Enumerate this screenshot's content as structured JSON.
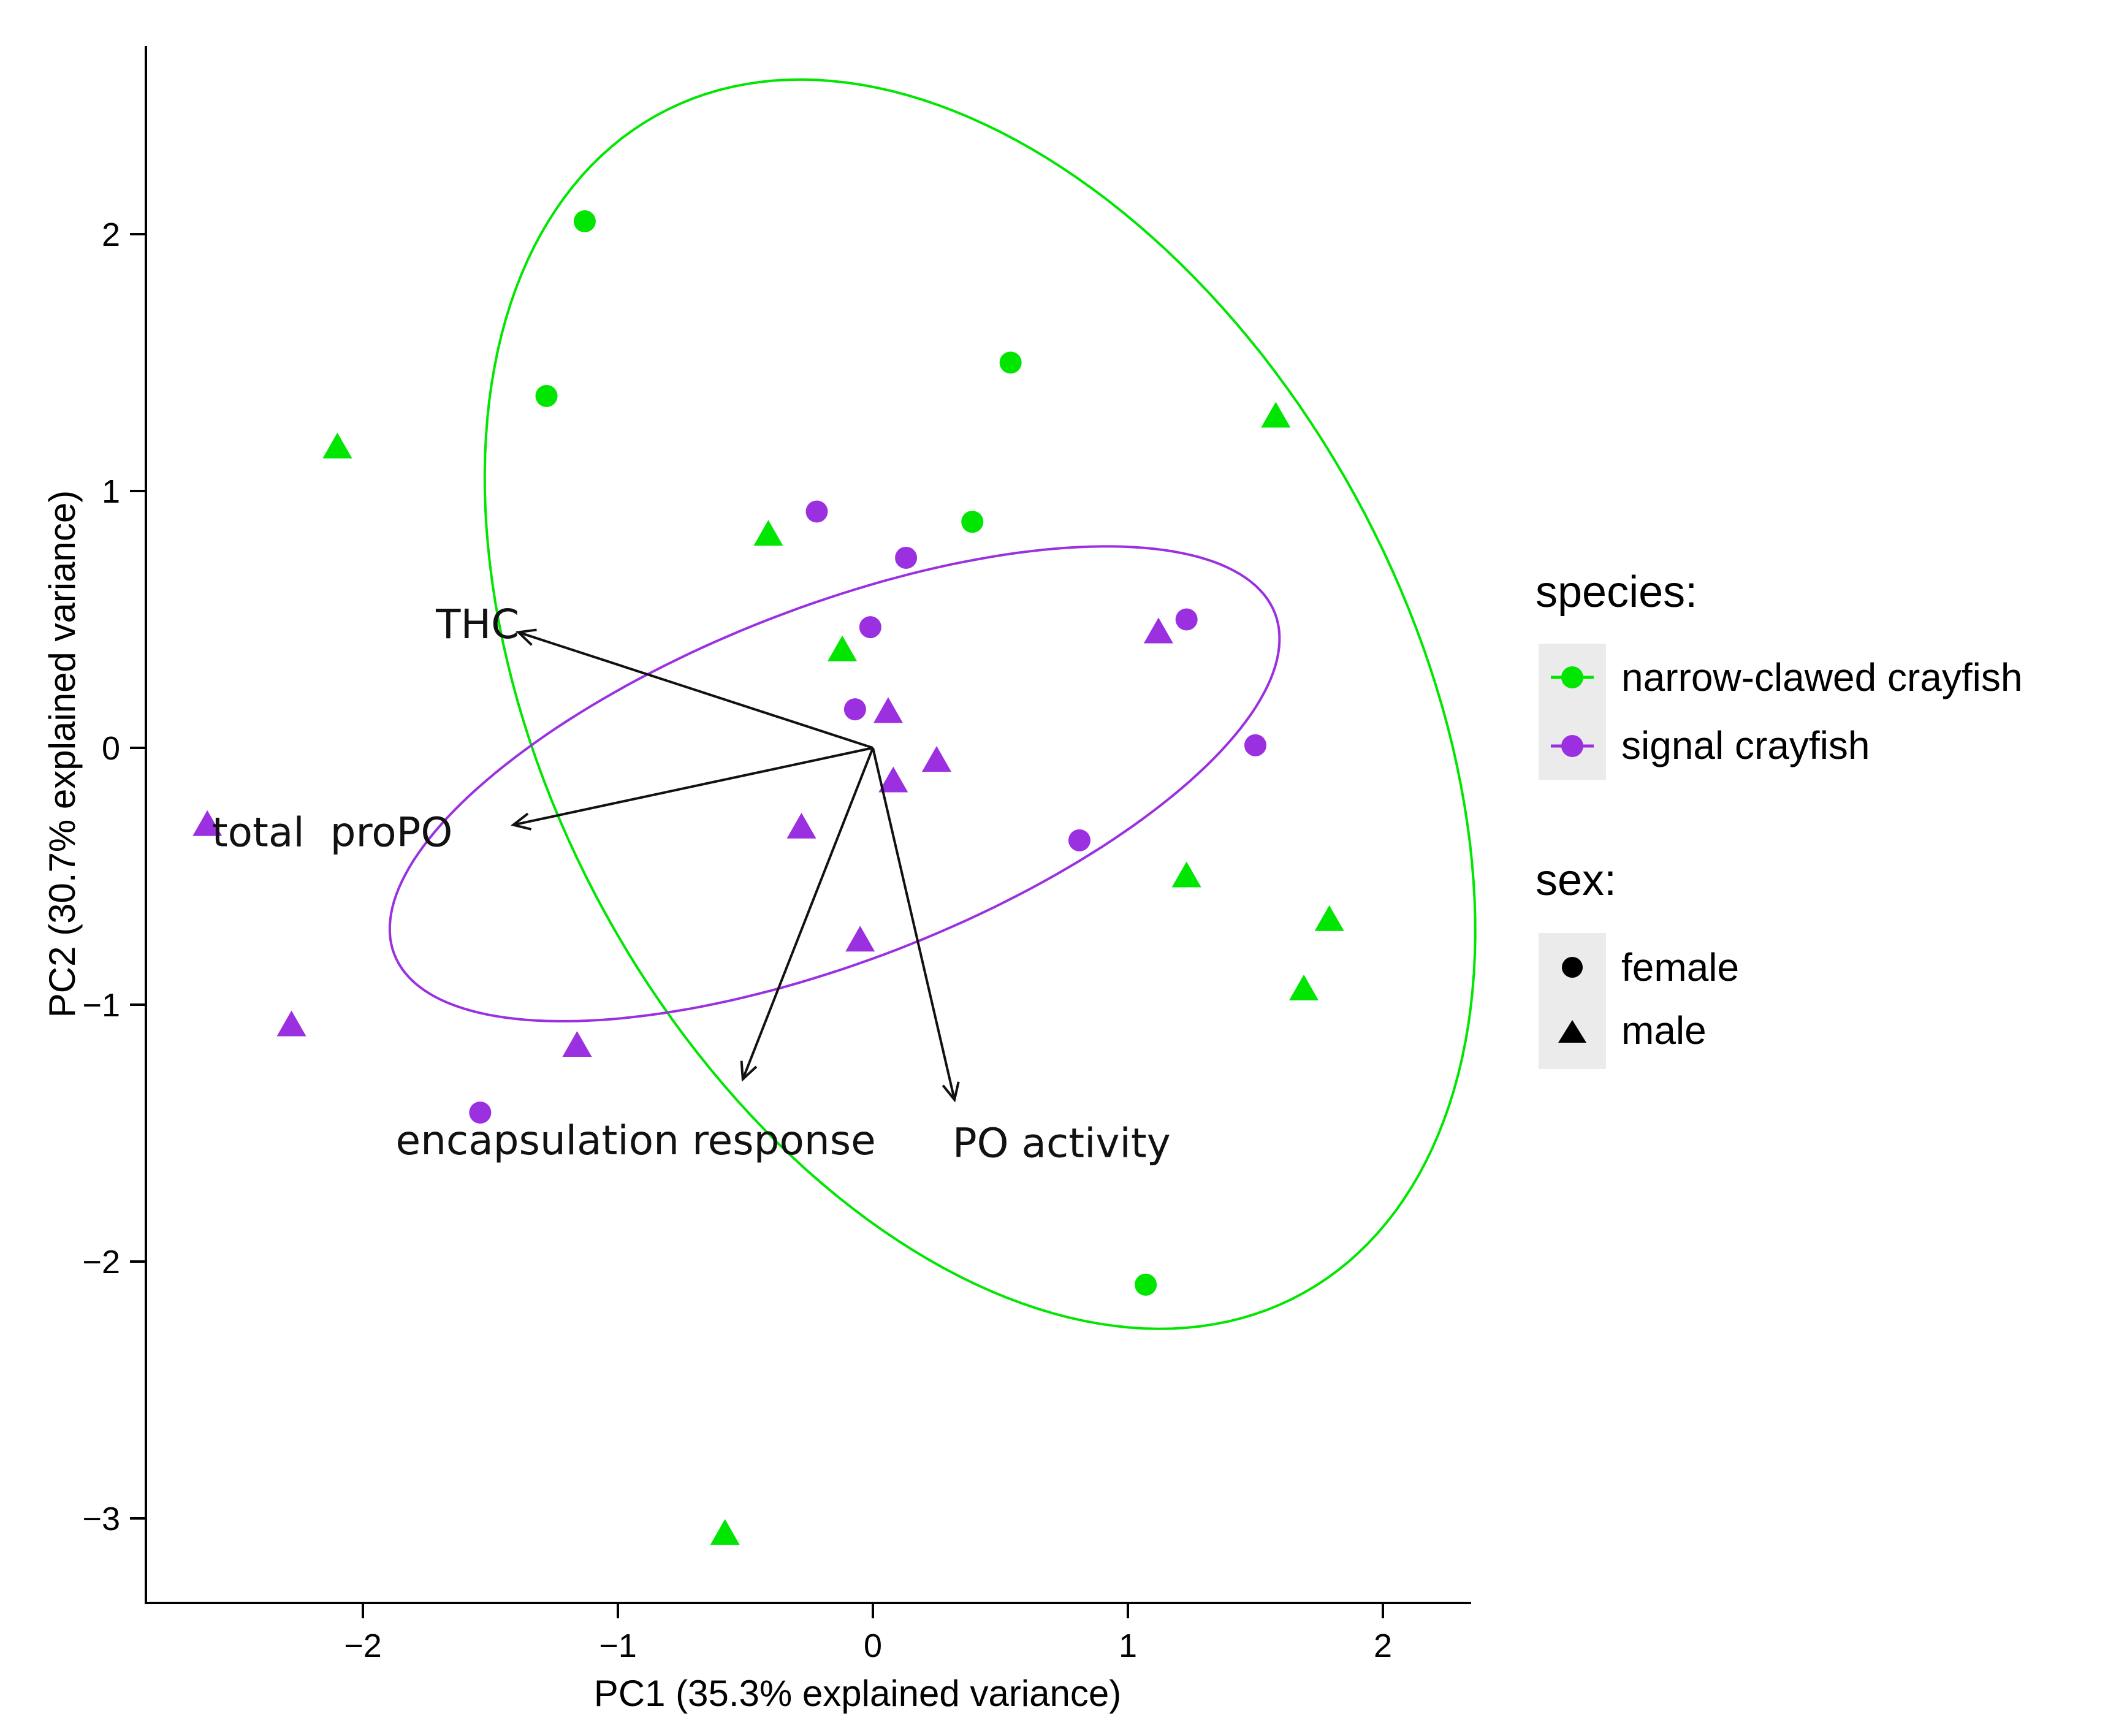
{
  "chart_data": {
    "type": "scatter",
    "xlabel": "PC1 (35.3% explained variance)",
    "ylabel": "PC2 (30.7% explained variance)",
    "xlim": [
      -2.85,
      2.35
    ],
    "ylim": [
      -3.33,
      2.72
    ],
    "x_ticks": [
      -2,
      -1,
      0,
      1,
      2
    ],
    "x_tick_labels": [
      "−2",
      "−1",
      "0",
      "1",
      "2"
    ],
    "y_ticks": [
      -3,
      -2,
      -1,
      0,
      1,
      2
    ],
    "y_tick_labels": [
      "−3",
      "−2",
      "−1",
      "0",
      "1",
      "2"
    ],
    "grid": false,
    "colors": {
      "narrow-clawed crayfish": "#00e600",
      "signal crayfish": "#9b30e0"
    },
    "points": [
      {
        "species": "narrow-clawed crayfish",
        "sex": "female",
        "x": -1.13,
        "y": 2.05
      },
      {
        "species": "narrow-clawed crayfish",
        "sex": "female",
        "x": -1.28,
        "y": 1.37
      },
      {
        "species": "narrow-clawed crayfish",
        "sex": "female",
        "x": 0.54,
        "y": 1.5
      },
      {
        "species": "narrow-clawed crayfish",
        "sex": "female",
        "x": 0.39,
        "y": 0.88
      },
      {
        "species": "narrow-clawed crayfish",
        "sex": "female",
        "x": 1.07,
        "y": -2.09
      },
      {
        "species": "narrow-clawed crayfish",
        "sex": "male",
        "x": -2.1,
        "y": 1.17
      },
      {
        "species": "narrow-clawed crayfish",
        "sex": "male",
        "x": 1.58,
        "y": 1.29
      },
      {
        "species": "narrow-clawed crayfish",
        "sex": "male",
        "x": -0.41,
        "y": 0.83
      },
      {
        "species": "narrow-clawed crayfish",
        "sex": "male",
        "x": -0.12,
        "y": 0.38
      },
      {
        "species": "narrow-clawed crayfish",
        "sex": "male",
        "x": 1.23,
        "y": -0.5
      },
      {
        "species": "narrow-clawed crayfish",
        "sex": "male",
        "x": 1.79,
        "y": -0.67
      },
      {
        "species": "narrow-clawed crayfish",
        "sex": "male",
        "x": 1.69,
        "y": -0.94
      },
      {
        "species": "narrow-clawed crayfish",
        "sex": "male",
        "x": -0.58,
        "y": -3.06
      },
      {
        "species": "signal crayfish",
        "sex": "female",
        "x": -0.22,
        "y": 0.92
      },
      {
        "species": "signal crayfish",
        "sex": "female",
        "x": 0.13,
        "y": 0.74
      },
      {
        "species": "signal crayfish",
        "sex": "female",
        "x": -0.01,
        "y": 0.47
      },
      {
        "species": "signal crayfish",
        "sex": "female",
        "x": 1.23,
        "y": 0.5
      },
      {
        "species": "signal crayfish",
        "sex": "female",
        "x": -0.07,
        "y": 0.15
      },
      {
        "species": "signal crayfish",
        "sex": "female",
        "x": 1.5,
        "y": 0.01
      },
      {
        "species": "signal crayfish",
        "sex": "female",
        "x": 0.81,
        "y": -0.36
      },
      {
        "species": "signal crayfish",
        "sex": "female",
        "x": -1.54,
        "y": -1.42
      },
      {
        "species": "signal crayfish",
        "sex": "male",
        "x": 1.12,
        "y": 0.45
      },
      {
        "species": "signal crayfish",
        "sex": "male",
        "x": 0.06,
        "y": 0.14
      },
      {
        "species": "signal crayfish",
        "sex": "male",
        "x": 0.25,
        "y": -0.05
      },
      {
        "species": "signal crayfish",
        "sex": "male",
        "x": 0.08,
        "y": -0.13
      },
      {
        "species": "signal crayfish",
        "sex": "male",
        "x": -0.28,
        "y": -0.31
      },
      {
        "species": "signal crayfish",
        "sex": "male",
        "x": -2.61,
        "y": -0.3
      },
      {
        "species": "signal crayfish",
        "sex": "male",
        "x": -0.05,
        "y": -0.75
      },
      {
        "species": "signal crayfish",
        "sex": "male",
        "x": -2.28,
        "y": -1.08
      },
      {
        "species": "signal crayfish",
        "sex": "male",
        "x": -1.16,
        "y": -1.16
      }
    ],
    "ellipses": [
      {
        "species": "narrow-clawed crayfish",
        "cx": 0.42,
        "cy": 0.17,
        "a": 2.62,
        "b": 1.68,
        "angle_deg": -61
      },
      {
        "species": "signal crayfish",
        "cx": -0.15,
        "cy": -0.14,
        "a": 1.85,
        "b": 0.69,
        "angle_deg": 21
      }
    ],
    "loadings": [
      {
        "label": "THC",
        "x": -1.39,
        "y": 0.45,
        "label_x": -1.55,
        "label_y": 0.48
      },
      {
        "label": "total  proPO",
        "x": -1.41,
        "y": -0.3,
        "label_x": -2.12,
        "label_y": -0.33
      },
      {
        "label": "encapsulation response",
        "x": -0.51,
        "y": -1.29,
        "label_x": -0.93,
        "label_y": -1.53
      },
      {
        "label": "PO activity",
        "x": 0.32,
        "y": -1.37,
        "label_x": 0.74,
        "label_y": -1.54
      }
    ],
    "legend": {
      "placement": "right",
      "species_title": "species:",
      "species_items": [
        "narrow-clawed crayfish",
        "signal crayfish"
      ],
      "sex_title": "sex:",
      "sex_items": [
        "female",
        "male"
      ]
    }
  }
}
